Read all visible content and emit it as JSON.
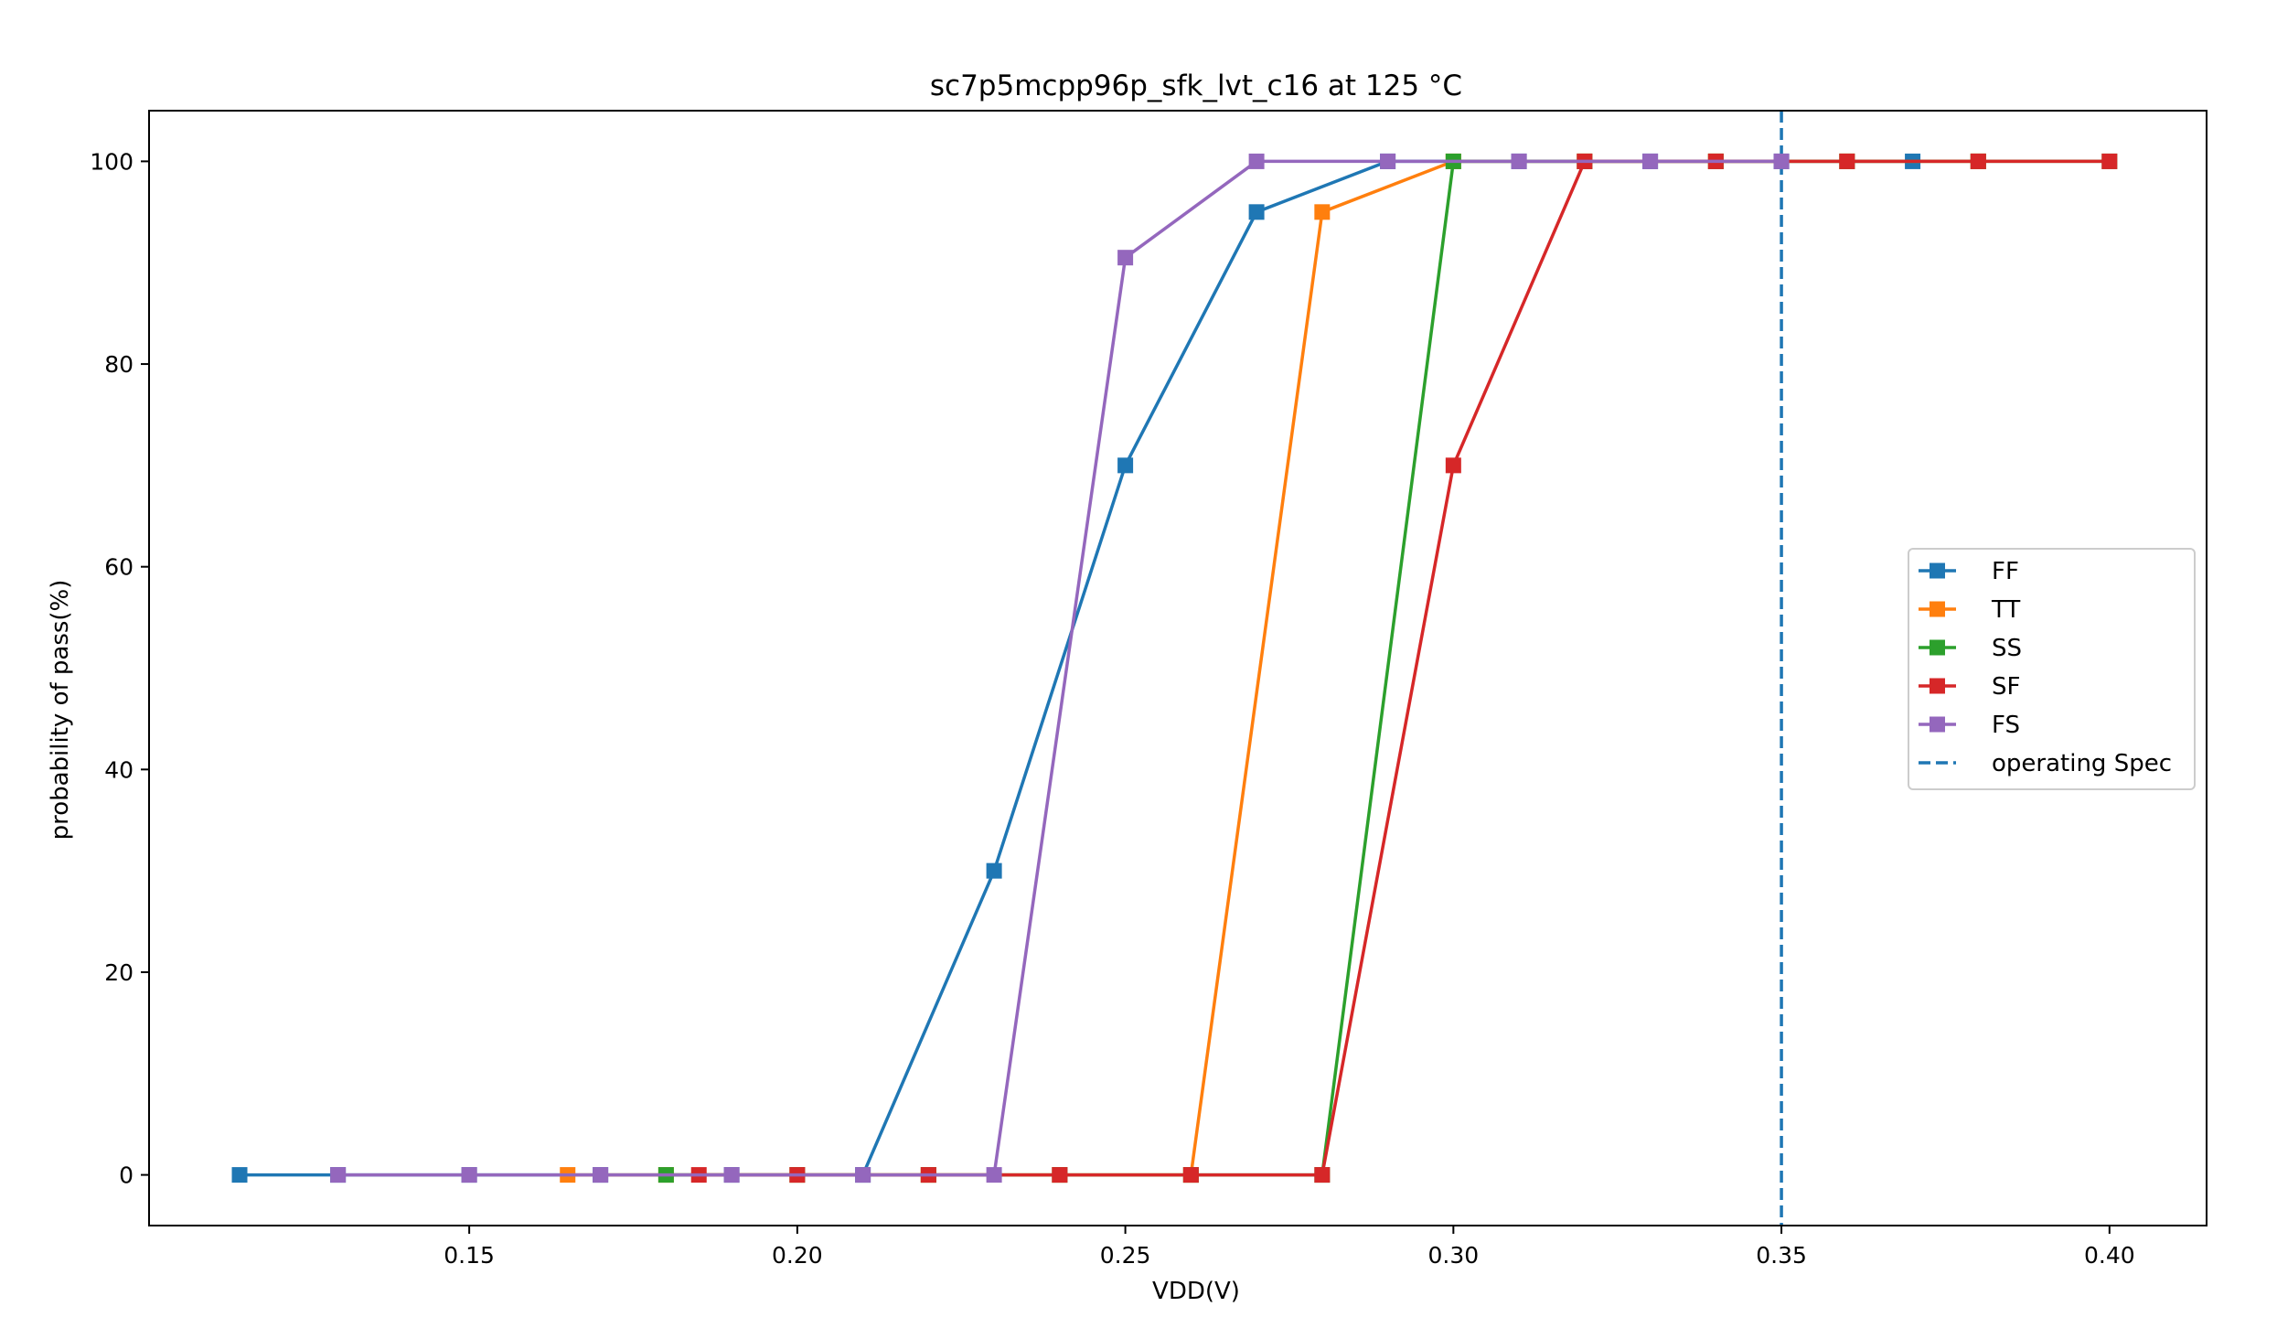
{
  "chart_data": {
    "type": "line",
    "title": "sc7p5mcpp96p_sfk_lvt_c16 at 125 °C",
    "xlabel": "VDD(V)",
    "ylabel": "probability of pass(%)",
    "xlim": [
      0.1012,
      0.4148
    ],
    "ylim": [
      -5,
      105
    ],
    "xticks": [
      0.15,
      0.2,
      0.25,
      0.3,
      0.35,
      0.4
    ],
    "xtick_labels": [
      "0.15",
      "0.20",
      "0.25",
      "0.30",
      "0.35",
      "0.40"
    ],
    "yticks": [
      0,
      20,
      40,
      60,
      80,
      100
    ],
    "ytick_labels": [
      "0",
      "20",
      "40",
      "60",
      "80",
      "100"
    ],
    "grid": false,
    "legend_position": "center-right",
    "marker": "square",
    "series": [
      {
        "name": "FF",
        "color": "#1f77b4",
        "points": [
          [
            0.115,
            0
          ],
          [
            0.13,
            0
          ],
          [
            0.15,
            0
          ],
          [
            0.17,
            0
          ],
          [
            0.19,
            0
          ],
          [
            0.21,
            0
          ],
          [
            0.23,
            30
          ],
          [
            0.25,
            70
          ],
          [
            0.27,
            95
          ],
          [
            0.29,
            100
          ],
          [
            0.31,
            100
          ],
          [
            0.33,
            100
          ],
          [
            0.35,
            100
          ],
          [
            0.37,
            100
          ]
        ]
      },
      {
        "name": "TT",
        "color": "#ff7f0e",
        "points": [
          [
            0.165,
            0
          ],
          [
            0.18,
            0
          ],
          [
            0.2,
            0
          ],
          [
            0.22,
            0
          ],
          [
            0.24,
            0
          ],
          [
            0.26,
            0
          ],
          [
            0.28,
            95
          ],
          [
            0.3,
            100
          ],
          [
            0.32,
            100
          ],
          [
            0.34,
            100
          ],
          [
            0.36,
            100
          ],
          [
            0.38,
            100
          ]
        ]
      },
      {
        "name": "SS",
        "color": "#2ca02c",
        "points": [
          [
            0.18,
            0
          ],
          [
            0.2,
            0
          ],
          [
            0.22,
            0
          ],
          [
            0.24,
            0
          ],
          [
            0.26,
            0
          ],
          [
            0.28,
            0
          ],
          [
            0.3,
            100
          ],
          [
            0.32,
            100
          ],
          [
            0.34,
            100
          ],
          [
            0.36,
            100
          ],
          [
            0.38,
            100
          ],
          [
            0.4,
            100
          ]
        ]
      },
      {
        "name": "SF",
        "color": "#d62728",
        "points": [
          [
            0.185,
            0
          ],
          [
            0.2,
            0
          ],
          [
            0.22,
            0
          ],
          [
            0.24,
            0
          ],
          [
            0.26,
            0
          ],
          [
            0.28,
            0
          ],
          [
            0.3,
            70
          ],
          [
            0.32,
            100
          ],
          [
            0.34,
            100
          ],
          [
            0.36,
            100
          ],
          [
            0.38,
            100
          ],
          [
            0.4,
            100
          ]
        ]
      },
      {
        "name": "FS",
        "color": "#9467bd",
        "points": [
          [
            0.13,
            0
          ],
          [
            0.15,
            0
          ],
          [
            0.17,
            0
          ],
          [
            0.19,
            0
          ],
          [
            0.21,
            0
          ],
          [
            0.23,
            0
          ],
          [
            0.25,
            90.5
          ],
          [
            0.27,
            100
          ],
          [
            0.29,
            100
          ],
          [
            0.31,
            100
          ],
          [
            0.33,
            100
          ],
          [
            0.35,
            100
          ]
        ]
      }
    ],
    "reference_lines": [
      {
        "name": "operating Spec",
        "orientation": "vertical",
        "x": 0.35,
        "color": "#1f77b4",
        "style": "dashed"
      }
    ]
  }
}
